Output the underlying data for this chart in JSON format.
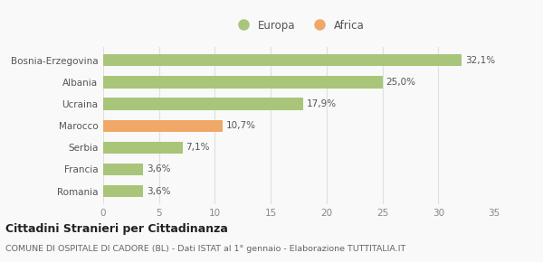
{
  "categories": [
    "Romania",
    "Francia",
    "Serbia",
    "Marocco",
    "Ucraina",
    "Albania",
    "Bosnia-Erzegovina"
  ],
  "values": [
    3.6,
    3.6,
    7.1,
    10.7,
    17.9,
    25.0,
    32.1
  ],
  "colors": [
    "#a8c57a",
    "#a8c57a",
    "#a8c57a",
    "#f0a868",
    "#a8c57a",
    "#a8c57a",
    "#a8c57a"
  ],
  "labels": [
    "3,6%",
    "3,6%",
    "7,1%",
    "10,7%",
    "17,9%",
    "25,0%",
    "32,1%"
  ],
  "legend_europa_color": "#a8c57a",
  "legend_africa_color": "#f0a868",
  "xlim": [
    0,
    35
  ],
  "xticks": [
    0,
    5,
    10,
    15,
    20,
    25,
    30,
    35
  ],
  "title_main": "Cittadini Stranieri per Cittadinanza",
  "title_sub": "COMUNE DI OSPITALE DI CADORE (BL) - Dati ISTAT al 1° gennaio - Elaborazione TUTTITALIA.IT",
  "background_color": "#f9f9f9",
  "bar_height": 0.55,
  "grid_color": "#e0e0e0",
  "label_fontsize": 7.5,
  "ytick_fontsize": 7.5,
  "xtick_fontsize": 7.5,
  "legend_fontsize": 8.5,
  "title_fontsize": 9.0,
  "sub_fontsize": 6.8
}
